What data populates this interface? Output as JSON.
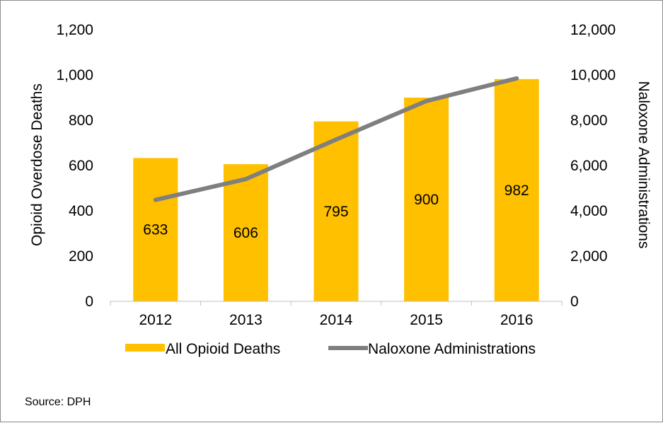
{
  "chart_data": {
    "type": "bar",
    "categories": [
      "2012",
      "2013",
      "2014",
      "2015",
      "2016"
    ],
    "series": [
      {
        "name": "All Opioid Deaths",
        "type": "bar",
        "axis": "left",
        "color": "#FFC000",
        "values": [
          633,
          606,
          795,
          900,
          982
        ],
        "data_labels": [
          "633",
          "606",
          "795",
          "900",
          "982"
        ]
      },
      {
        "name": "Naloxone Administrations",
        "type": "line",
        "axis": "right",
        "color": "#7F7F7F",
        "values": [
          4480,
          5400,
          7150,
          8850,
          9850
        ]
      }
    ],
    "ylabel_left": "Opioid Overdose Deaths",
    "ylabel_right": "Naloxone Administrations",
    "ylim_left": [
      0,
      1200
    ],
    "ylim_right": [
      0,
      12000
    ],
    "yticks_left": [
      "0",
      "200",
      "400",
      "600",
      "800",
      "1,000",
      "1,200"
    ],
    "yticks_right": [
      "0",
      "2,000",
      "4,000",
      "6,000",
      "8,000",
      "10,000",
      "12,000"
    ],
    "grid": false,
    "legend_position": "bottom"
  },
  "source": "Source: DPH"
}
